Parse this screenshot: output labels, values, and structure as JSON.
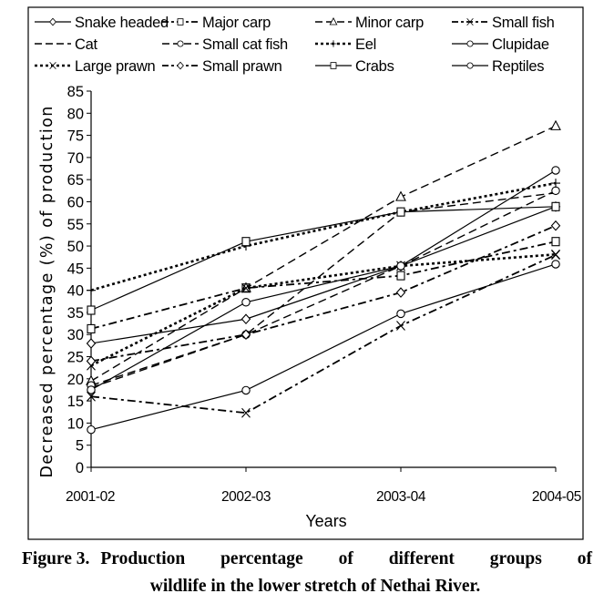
{
  "figure_caption": {
    "label": "Figure 3.",
    "line1": "Production percentage of different groups of",
    "line2": "wildlife in the lower stretch of Nethai River."
  },
  "chart_data": {
    "type": "line",
    "title": "",
    "xlabel": "Years",
    "ylabel": "Decreased percentage (%) of production",
    "categories": [
      "2001-02",
      "2002-03",
      "2003-04",
      "2004-05"
    ],
    "ylim": [
      0,
      85
    ],
    "yticks": [
      0,
      5,
      10,
      15,
      20,
      25,
      30,
      35,
      40,
      45,
      50,
      55,
      60,
      65,
      70,
      75,
      80,
      85
    ],
    "grid": false,
    "legend_position": "top",
    "series": [
      {
        "name": "Snake headed",
        "line": "solid",
        "marker": "diamond",
        "values": [
          28,
          33.5,
          45.5,
          58.9
        ]
      },
      {
        "name": "Major carp",
        "line": "dashdot",
        "marker": "square",
        "values": [
          31.3,
          40.5,
          43.3,
          51.0
        ]
      },
      {
        "name": "Minor carp",
        "line": "dashed",
        "marker": "triangle",
        "values": [
          19.5,
          40.5,
          61.1,
          77.1
        ]
      },
      {
        "name": "Small fish",
        "line": "dashdot",
        "marker": "x",
        "values": [
          16,
          12.3,
          32,
          48
        ]
      },
      {
        "name": "Cat",
        "line": "dashed",
        "marker": "none",
        "values": [
          18,
          30,
          57.7,
          62
        ]
      },
      {
        "name": "Small cat fish",
        "line": "dashed",
        "marker": "circle",
        "values": [
          18.5,
          30,
          45.5,
          62.5
        ]
      },
      {
        "name": "Eel",
        "line": "dotted",
        "marker": "plus",
        "values": [
          40,
          50,
          57.7,
          64.2
        ]
      },
      {
        "name": "Clupidae",
        "line": "solid",
        "marker": "circle",
        "values": [
          8.5,
          17.4,
          34.7,
          45.9
        ]
      },
      {
        "name": "Large prawn",
        "line": "dotted",
        "marker": "x",
        "values": [
          23,
          40.5,
          45.5,
          48.1
        ]
      },
      {
        "name": "Small prawn",
        "line": "dashdot",
        "marker": "diamond",
        "values": [
          24,
          30,
          39.5,
          54.6
        ]
      },
      {
        "name": "Crabs",
        "line": "solid",
        "marker": "square",
        "values": [
          35.5,
          51,
          57.7,
          58.9
        ]
      },
      {
        "name": "Reptiles",
        "line": "solid",
        "marker": "circle",
        "values": [
          17.5,
          37.3,
          45.5,
          67.1
        ]
      }
    ]
  }
}
